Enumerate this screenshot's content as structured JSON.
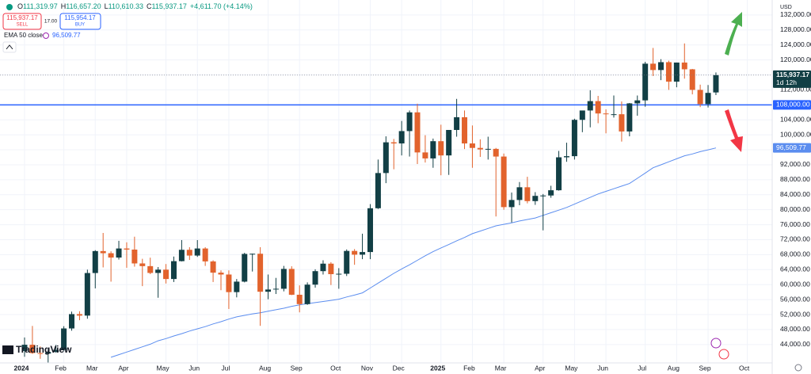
{
  "chart_data": {
    "type": "candlestick",
    "header": {
      "items": [
        {
          "key": "O",
          "value": "111,319.97"
        },
        {
          "key": "H",
          "value": "116,657.20"
        },
        {
          "key": "L",
          "value": "110,610.33"
        },
        {
          "key": "C",
          "value": "115,937.17"
        }
      ],
      "change": "+4,611.70 (+4.14%)"
    },
    "categories": [
      "2024",
      null,
      null,
      null,
      null,
      "Feb",
      null,
      null,
      null,
      "Mar",
      null,
      null,
      null,
      "Apr",
      null,
      null,
      null,
      null,
      "May",
      null,
      null,
      null,
      "Jun",
      null,
      null,
      null,
      "Jul",
      null,
      null,
      null,
      null,
      "Aug",
      null,
      null,
      null,
      "Sep",
      null,
      null,
      null,
      null,
      "Oct",
      null,
      null,
      null,
      "Nov",
      null,
      null,
      null,
      "Dec",
      null,
      null,
      null,
      null,
      "2025",
      null,
      null,
      null,
      "Feb",
      null,
      null,
      null,
      "Mar",
      null,
      null,
      null,
      null,
      "Apr",
      null,
      null,
      null,
      "May",
      null,
      null,
      null,
      "Jun",
      null,
      null,
      null,
      null,
      "Jul",
      null,
      null,
      null,
      "Aug",
      null,
      null,
      null,
      "Sep",
      null,
      null,
      null,
      null,
      "Oct"
    ],
    "open": [
      42280,
      43950,
      41730,
      41580,
      42030,
      42580,
      48300,
      52130,
      51730,
      63100,
      68960,
      68390,
      67230,
      69650,
      69360,
      65660,
      64940,
      63120,
      64000,
      61500,
      66270,
      69300,
      67760,
      69650,
      66200,
      63200,
      62700,
      58000,
      60800,
      68200,
      68250,
      58100,
      58700,
      58900,
      64200,
      57300,
      54800,
      60000,
      63600,
      65600,
      62800,
      62900,
      69000,
      68000,
      68700,
      80400,
      89800,
      98000,
      97700,
      101000,
      106000,
      95300,
      93700,
      98300,
      94500,
      101300,
      104700,
      97700,
      96500,
      96100,
      96250,
      94200,
      80700,
      82600,
      86000,
      82300,
      83700,
      83800,
      85200,
      94000,
      94300,
      104000,
      106500,
      109000,
      105700,
      105500,
      105500,
      100900,
      108400,
      109200,
      119000,
      117300,
      119400,
      114200,
      119300,
      117500,
      112000,
      108200,
      111319.97,
      null,
      null,
      null,
      null
    ],
    "high": [
      45900,
      48970,
      43500,
      42800,
      43900,
      48900,
      52800,
      52900,
      64000,
      69200,
      73800,
      68900,
      71700,
      71300,
      72800,
      66900,
      67200,
      64700,
      65500,
      67500,
      71900,
      70000,
      71900,
      70000,
      66500,
      63800,
      63800,
      61500,
      68500,
      68300,
      70000,
      62700,
      61800,
      65000,
      64900,
      59800,
      60600,
      64100,
      66500,
      66000,
      64400,
      69400,
      69500,
      73600,
      81500,
      93400,
      99600,
      98900,
      103700,
      106500,
      108300,
      99900,
      99000,
      102700,
      101300,
      109600,
      106500,
      102500,
      98800,
      99500,
      96500,
      95000,
      84600,
      87400,
      88800,
      84700,
      84200,
      86400,
      95700,
      97900,
      104300,
      105800,
      111900,
      110400,
      106800,
      110500,
      108900,
      108500,
      110500,
      119500,
      123200,
      120200,
      119800,
      119300,
      124400,
      117600,
      113400,
      113300,
      116657.2,
      null,
      null,
      null,
      null
    ],
    "low": [
      40750,
      41500,
      40200,
      38500,
      41800,
      42300,
      47700,
      50500,
      50900,
      59000,
      64600,
      60800,
      66700,
      64500,
      64800,
      59600,
      62800,
      56500,
      60300,
      60700,
      66200,
      66600,
      67400,
      65000,
      60700,
      58500,
      53500,
      56600,
      60600,
      63500,
      49000,
      56100,
      57500,
      58200,
      57200,
      52600,
      54600,
      59200,
      62700,
      59900,
      58900,
      62300,
      65300,
      66800,
      66800,
      80200,
      87100,
      90800,
      94500,
      94200,
      92200,
      92600,
      91200,
      89200,
      89300,
      99500,
      96200,
      91200,
      94100,
      93400,
      78200,
      80000,
      76600,
      81200,
      81700,
      81300,
      74500,
      83200,
      85100,
      92800,
      93400,
      100700,
      102000,
      103100,
      100400,
      104600,
      98200,
      99600,
      105100,
      107500,
      115700,
      114600,
      112000,
      112700,
      115000,
      110800,
      107400,
      107300,
      110610.33,
      null,
      null,
      null,
      null
    ],
    "close": [
      43950,
      41730,
      41580,
      42030,
      42580,
      48300,
      52130,
      51730,
      63100,
      68960,
      68390,
      67230,
      69650,
      69360,
      65660,
      64940,
      63120,
      64000,
      61500,
      66270,
      69300,
      67760,
      69650,
      66200,
      63200,
      62700,
      58000,
      60800,
      68200,
      68250,
      58100,
      58700,
      58900,
      64200,
      57300,
      54800,
      60000,
      63600,
      65600,
      62800,
      62900,
      69000,
      68000,
      68700,
      80400,
      89800,
      98000,
      97700,
      101000,
      106000,
      95300,
      93700,
      98300,
      94500,
      101300,
      104700,
      97700,
      96500,
      96100,
      96250,
      94200,
      80700,
      82600,
      86000,
      82300,
      83700,
      83800,
      85200,
      94000,
      94300,
      104000,
      106500,
      109000,
      105700,
      105500,
      105500,
      100900,
      108400,
      109200,
      119000,
      117300,
      119400,
      114200,
      119300,
      117500,
      112000,
      108200,
      111200,
      115937.17,
      null,
      null,
      null,
      null
    ],
    "up_color": "#123f45",
    "down_color": "#e2632d",
    "ylim": [
      39100,
      136000
    ],
    "yticks": [
      {
        "value": 44000,
        "label": "44,000.00"
      },
      {
        "value": 48000,
        "label": "48,000.00"
      },
      {
        "value": 52000,
        "label": "52,000.00"
      },
      {
        "value": 56000,
        "label": "56,000.00"
      },
      {
        "value": 60000,
        "label": "60,000.00"
      },
      {
        "value": 64000,
        "label": "64,000.00"
      },
      {
        "value": 68000,
        "label": "68,000.00"
      },
      {
        "value": 72000,
        "label": "72,000.00"
      },
      {
        "value": 76000,
        "label": "76,000.00"
      },
      {
        "value": 80000,
        "label": "80,000.00"
      },
      {
        "value": 84000,
        "label": "84,000.00"
      },
      {
        "value": 88000,
        "label": "88,000.00"
      },
      {
        "value": 92000,
        "label": "92,000.00"
      },
      {
        "value": 96000,
        "label": "96,000.00"
      },
      {
        "value": 100000,
        "label": "100,000.00"
      },
      {
        "value": 104000,
        "label": "104,000.00"
      },
      {
        "value": 108000,
        "label": "108,000.00"
      },
      {
        "value": 112000,
        "label": "112,000.00"
      },
      {
        "value": 116000,
        "label": "116,000.00"
      },
      {
        "value": 120000,
        "label": "120,000.00"
      },
      {
        "value": 124000,
        "label": "124,000.00"
      },
      {
        "value": 128000,
        "label": "128,000.00"
      },
      {
        "value": 132000,
        "label": "132,000.00"
      }
    ],
    "grid": true,
    "currency": "USD",
    "last_price": {
      "label": "115,937.17",
      "countdown": "1d 12h",
      "color": "#123f45"
    },
    "price_line": {
      "value": 108000,
      "label": "108,000.00",
      "color": "#2962ff"
    },
    "indicator": {
      "name": "EMA 50 close",
      "color": "#5b8def",
      "last_label": "96,509.77",
      "values": [
        null,
        null,
        null,
        null,
        null,
        null,
        null,
        null,
        null,
        null,
        null,
        40600,
        41300,
        42000,
        42700,
        43400,
        44100,
        45000,
        45600,
        46300,
        46900,
        47600,
        48200,
        48800,
        49500,
        50100,
        50800,
        51400,
        51800,
        52200,
        52500,
        52900,
        53300,
        53700,
        54200,
        54600,
        54900,
        55200,
        55500,
        55800,
        56100,
        56700,
        57200,
        57800,
        59100,
        60400,
        61700,
        63000,
        64200,
        65300,
        66500,
        67700,
        68800,
        69800,
        70700,
        71700,
        72600,
        73600,
        74300,
        75000,
        75700,
        76100,
        76500,
        77000,
        77400,
        77800,
        78500,
        79200,
        79900,
        80600,
        81500,
        82400,
        83300,
        84200,
        84900,
        85600,
        86300,
        87000,
        88400,
        89800,
        91200,
        92000,
        92800,
        93600,
        94400,
        94900,
        95500,
        96000,
        96509.77,
        null,
        null,
        null,
        null
      ]
    }
  },
  "toolbar": {
    "sell_price": "115,937.17",
    "sell": "SELL",
    "spread": "17.00",
    "buy_price": "115,954.17",
    "buy": "BUY"
  },
  "logo": "TradingView"
}
